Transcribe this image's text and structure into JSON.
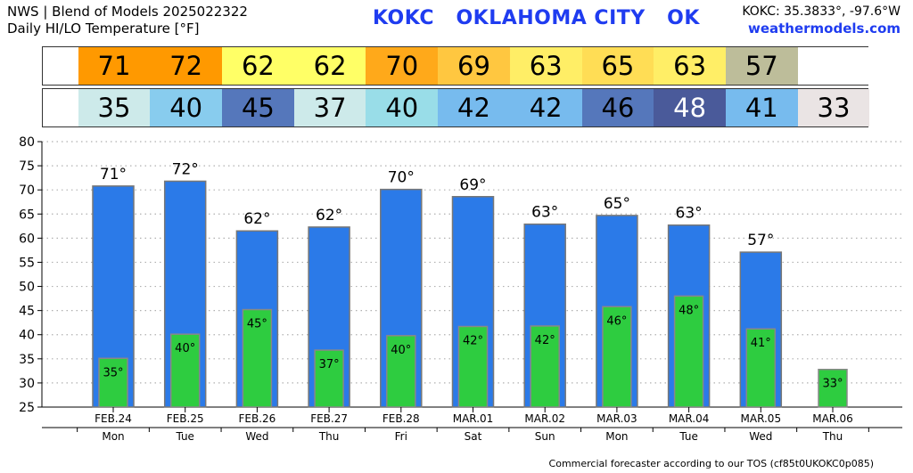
{
  "header": {
    "line1": "NWS | Blend of Models 2025022322",
    "line2": "Daily HI/LO Temperature [°F]",
    "station": "KOKC   OKLAHOMA CITY   OK",
    "coords": "KOKC: 35.3833°, -97.6°W",
    "site": "weathermodels.com"
  },
  "footer": "Commercial forecaster according to our TOS (cf85t0UKOKC0p085)",
  "colors": {
    "high_bar": "#2b7ae8",
    "low_bar": "#2ecc40",
    "high_strip": [
      "#ff9900",
      "#ff9900",
      "#ffff66",
      "#ffff66",
      "#ffa91a",
      "#ffc740",
      "#ffee66",
      "#ffdd55",
      "#ffee66",
      "#bdbd9a",
      "#ffffff"
    ],
    "low_strip": [
      "#cdeaea",
      "#88ccee",
      "#5577bb",
      "#cdeaea",
      "#99dde8",
      "#77bbee",
      "#77bbee",
      "#5577bb",
      "#4a5a9a",
      "#77bbee",
      "#eae4e4"
    ],
    "low_strip_text": [
      "#000",
      "#000",
      "#000",
      "#000",
      "#000",
      "#000",
      "#000",
      "#000",
      "#ffffff",
      "#000",
      "#000"
    ]
  },
  "chart_data": {
    "type": "bar",
    "title": "Daily HI/LO Temperature [°F]",
    "categories": [
      "FEB.24",
      "FEB.25",
      "FEB.26",
      "FEB.27",
      "FEB.28",
      "MAR.01",
      "MAR.02",
      "MAR.03",
      "MAR.04",
      "MAR.05",
      "MAR.06"
    ],
    "weekdays": [
      "Mon",
      "Tue",
      "Wed",
      "Thu",
      "Fri",
      "Sat",
      "Sun",
      "Mon",
      "Tue",
      "Wed",
      "Thu"
    ],
    "ylim": [
      25,
      80
    ],
    "yticks": [
      25,
      30,
      35,
      40,
      45,
      50,
      55,
      60,
      65,
      70,
      75,
      80
    ],
    "grid": true,
    "series": [
      {
        "key": "high",
        "values": [
          71,
          72,
          62,
          62,
          70,
          69,
          63,
          65,
          63,
          57,
          null
        ],
        "bar_values": [
          70.8,
          71.8,
          61.5,
          62.3,
          70.1,
          68.6,
          62.9,
          64.7,
          62.7,
          57.1,
          null
        ]
      },
      {
        "key": "low",
        "values": [
          35,
          40,
          45,
          37,
          40,
          42,
          42,
          46,
          48,
          41,
          33
        ],
        "bar_values": [
          35.1,
          40.1,
          45.2,
          36.8,
          39.8,
          41.7,
          41.8,
          45.8,
          48.0,
          41.2,
          32.8
        ]
      }
    ]
  }
}
